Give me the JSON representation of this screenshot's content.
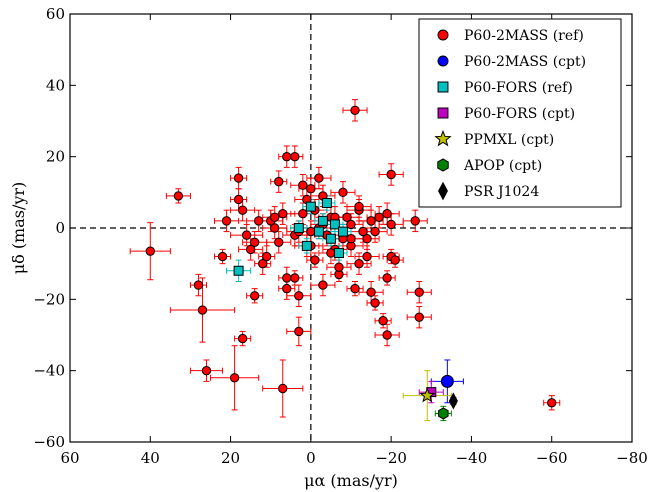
{
  "chart_data": {
    "type": "scatter",
    "xlabel": "μα (mas/yr)",
    "ylabel": "μδ (mas/yr)",
    "xlim": [
      60,
      -80
    ],
    "ylim": [
      -60,
      60
    ],
    "xticks": [
      60,
      40,
      20,
      0,
      -20,
      -40,
      -60,
      -80
    ],
    "yticks": [
      -60,
      -40,
      -20,
      0,
      20,
      40,
      60
    ],
    "xtick_labels": [
      "60",
      "40",
      "20",
      "0",
      "−20",
      "−40",
      "−60",
      "−80"
    ],
    "ytick_labels": [
      "−60",
      "−40",
      "−20",
      "0",
      "20",
      "40",
      "60"
    ],
    "reference_lines": {
      "x": 0,
      "y": 0,
      "style": "dashed"
    },
    "grid": false,
    "legend_position": "top-right",
    "series": [
      {
        "name": "P60-2MASS (ref)",
        "marker": "circle",
        "color": "#ff0000",
        "errorbar_color": "#ff0000",
        "points": [
          [
            40,
            -6.5,
            5,
            8
          ],
          [
            33,
            9,
            3,
            2
          ],
          [
            28,
            -16,
            2,
            3
          ],
          [
            27,
            -23,
            8,
            9
          ],
          [
            26,
            -40,
            4,
            3
          ],
          [
            19,
            -42,
            6,
            9
          ],
          [
            17,
            -31,
            2,
            2
          ],
          [
            18,
            14,
            2,
            3
          ],
          [
            17,
            5,
            3,
            3
          ],
          [
            18,
            8,
            2,
            3
          ],
          [
            22,
            -8,
            2,
            2
          ],
          [
            21,
            2,
            3,
            3
          ],
          [
            14,
            -19,
            2,
            2
          ],
          [
            15,
            -6,
            3,
            3
          ],
          [
            16,
            -2,
            4,
            3
          ],
          [
            14,
            -4,
            3,
            3
          ],
          [
            13,
            2,
            3,
            3
          ],
          [
            12,
            -10,
            2,
            3
          ],
          [
            11,
            -8,
            2,
            3
          ],
          [
            10,
            2,
            3,
            3
          ],
          [
            9,
            3,
            3,
            3
          ],
          [
            9,
            0,
            3,
            3
          ],
          [
            8,
            -4,
            3,
            3
          ],
          [
            8,
            13,
            2,
            3
          ],
          [
            7,
            4,
            3,
            3
          ],
          [
            6,
            20,
            2,
            3
          ],
          [
            4,
            20,
            2,
            3
          ],
          [
            6,
            -14,
            2,
            3
          ],
          [
            6,
            -17,
            2,
            3
          ],
          [
            7,
            -45,
            5,
            8
          ],
          [
            4,
            -2,
            3,
            3
          ],
          [
            4,
            -14,
            2,
            2
          ],
          [
            3,
            -1,
            3,
            3
          ],
          [
            3,
            -29,
            3,
            4
          ],
          [
            3,
            -19,
            3,
            3
          ],
          [
            2,
            12,
            3,
            3
          ],
          [
            2,
            4,
            3,
            3
          ],
          [
            1,
            -5,
            3,
            3
          ],
          [
            0,
            -1,
            3,
            3
          ],
          [
            0,
            -5,
            3,
            3
          ],
          [
            -1,
            5,
            3,
            3
          ],
          [
            -1,
            -9,
            2,
            2
          ],
          [
            -2,
            0,
            3,
            3
          ],
          [
            -2,
            14,
            3,
            3
          ],
          [
            -3,
            1,
            3,
            3
          ],
          [
            -3,
            -16,
            3,
            3
          ],
          [
            -4,
            -2,
            3,
            3
          ],
          [
            -5,
            3,
            3,
            3
          ],
          [
            -6,
            -6,
            3,
            3
          ],
          [
            -6,
            3,
            3,
            3
          ],
          [
            -7,
            -13,
            2,
            2
          ],
          [
            -8,
            10,
            3,
            3
          ],
          [
            -9,
            3,
            3,
            3
          ],
          [
            -10,
            1,
            3,
            3
          ],
          [
            -10,
            -5,
            3,
            3
          ],
          [
            -11,
            -17,
            2,
            2
          ],
          [
            -12,
            5,
            3,
            3
          ],
          [
            -13,
            -1,
            3,
            3
          ],
          [
            -14,
            -3,
            3,
            3
          ],
          [
            -14,
            -8,
            3,
            3
          ],
          [
            -15,
            2,
            3,
            3
          ],
          [
            -16,
            -1,
            3,
            3
          ],
          [
            -16,
            -21,
            2,
            2
          ],
          [
            -17,
            3,
            3,
            3
          ],
          [
            -18,
            -26,
            2,
            2
          ],
          [
            -19,
            4,
            3,
            3
          ],
          [
            -19,
            -14,
            2,
            2
          ],
          [
            -20,
            -8,
            2,
            2
          ],
          [
            -20,
            1,
            3,
            3
          ],
          [
            -21,
            -9,
            2,
            2
          ],
          [
            -19,
            -30,
            3,
            3
          ],
          [
            -20,
            15,
            3,
            3
          ],
          [
            -11,
            33,
            3,
            3
          ],
          [
            -12,
            6,
            3,
            3
          ],
          [
            -15,
            -18,
            3,
            3
          ],
          [
            -26,
            2,
            3,
            3
          ],
          [
            -27,
            -25,
            3,
            3
          ],
          [
            -27,
            -18,
            3,
            3
          ],
          [
            -60,
            -49,
            2,
            2
          ],
          [
            -10,
            -3,
            3,
            3
          ],
          [
            -5,
            -7,
            3,
            3
          ],
          [
            -7,
            -11,
            3,
            3
          ],
          [
            -8,
            -3,
            3,
            3
          ],
          [
            -12,
            -10,
            3,
            3
          ],
          [
            1,
            8,
            3,
            3
          ],
          [
            0,
            11,
            3,
            3
          ],
          [
            -3,
            9,
            3,
            3
          ]
        ]
      },
      {
        "name": "P60-2MASS (cpt)",
        "marker": "circle",
        "color": "#0000ff",
        "errorbar_color": "#0000ff",
        "points": [
          [
            -34,
            -43,
            4,
            6
          ]
        ]
      },
      {
        "name": "P60-FORS (ref)",
        "marker": "square",
        "color": "#00bfbf",
        "errorbar_color": "#00bfbf",
        "points": [
          [
            18,
            -12,
            3,
            3
          ],
          [
            3,
            0,
            2,
            2
          ],
          [
            1,
            -5,
            2,
            2
          ],
          [
            0,
            6,
            2,
            2
          ],
          [
            -2,
            -1,
            2,
            2
          ],
          [
            -3,
            2,
            2,
            2
          ],
          [
            -4,
            7,
            2,
            2
          ],
          [
            -5,
            -3,
            2,
            2
          ],
          [
            -6,
            1,
            2,
            2
          ],
          [
            -7,
            -7,
            2,
            2
          ],
          [
            -8,
            -1,
            2,
            2
          ]
        ]
      },
      {
        "name": "P60-FORS (cpt)",
        "marker": "square",
        "color": "#bf00bf",
        "errorbar_color": "#bf00bf",
        "points": [
          [
            -30,
            -46,
            3,
            3
          ]
        ]
      },
      {
        "name": "PPMXL (cpt)",
        "marker": "star",
        "color": "#bfbf00",
        "errorbar_color": "#bfbf00",
        "points": [
          [
            -29,
            -47,
            6,
            7
          ]
        ]
      },
      {
        "name": "APOP (cpt)",
        "marker": "hexagon",
        "color": "#008000",
        "errorbar_color": "#008000",
        "points": [
          [
            -33,
            -52,
            2,
            2
          ]
        ]
      },
      {
        "name": "PSR J1024",
        "marker": "diamond",
        "color": "#000000",
        "errorbar_color": "#000000",
        "points": [
          [
            -35.5,
            -48.5,
            0.5,
            1
          ]
        ]
      }
    ]
  }
}
